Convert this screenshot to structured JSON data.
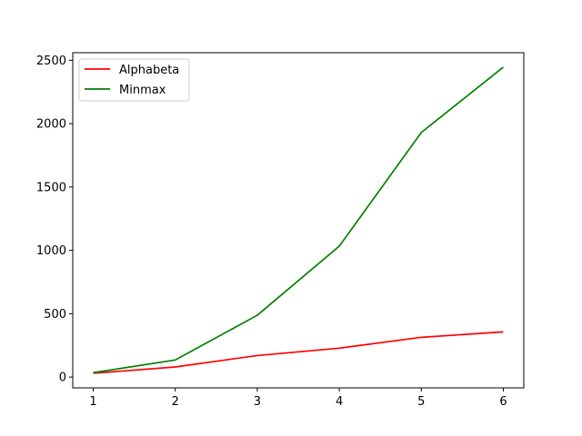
{
  "chart_data": {
    "type": "line",
    "title": "",
    "xlabel": "",
    "ylabel": "",
    "x": [
      1,
      2,
      3,
      4,
      5,
      6
    ],
    "series": [
      {
        "name": "Alphabeta",
        "color": "#ff0000",
        "values": [
          30,
          80,
          170,
          228,
          314,
          357
        ]
      },
      {
        "name": "Minmax",
        "color": "#008000",
        "values": [
          35,
          135,
          488,
          1033,
          1930,
          2446
        ]
      }
    ],
    "xlim": [
      0.75,
      6.25
    ],
    "ylim": [
      -85,
      2560
    ],
    "xticks": [
      1,
      2,
      3,
      4,
      5,
      6
    ],
    "yticks": [
      0,
      500,
      1000,
      1500,
      2000,
      2500
    ],
    "grid": false,
    "legend_position": "upper left"
  }
}
